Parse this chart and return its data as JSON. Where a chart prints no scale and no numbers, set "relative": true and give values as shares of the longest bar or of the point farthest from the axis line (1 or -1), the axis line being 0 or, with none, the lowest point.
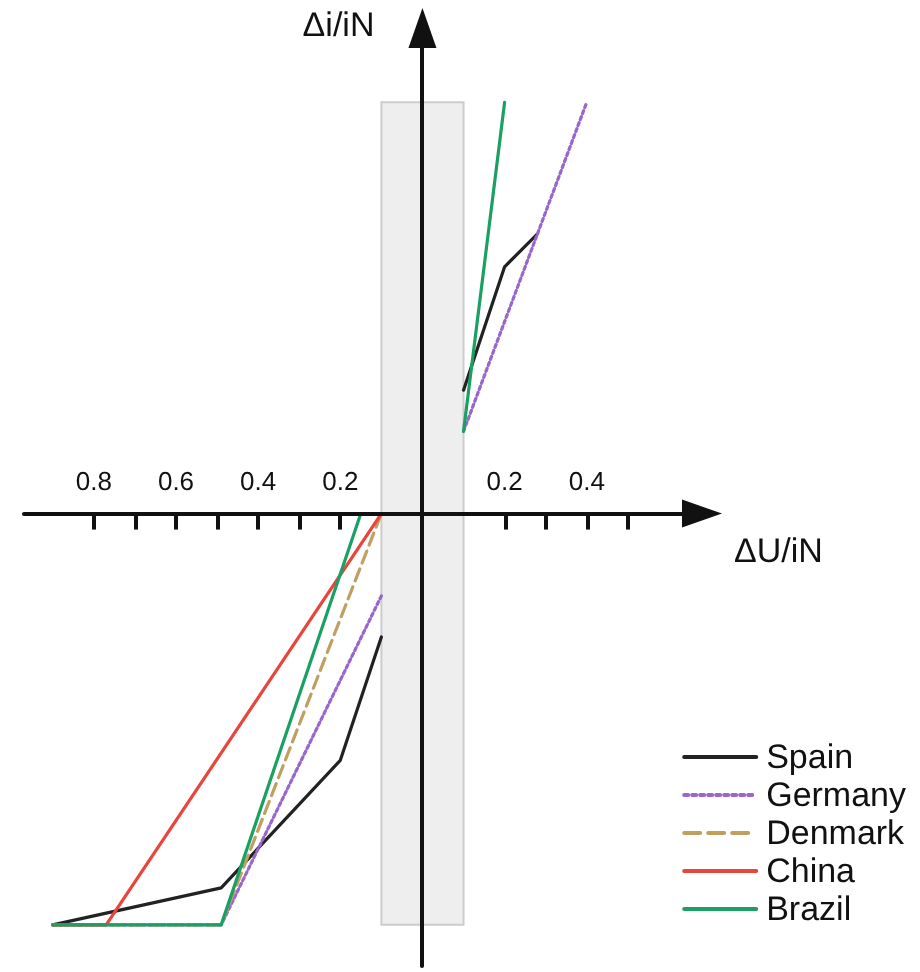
{
  "chart_data": {
    "type": "line",
    "xlabel": "ΔU/iN",
    "ylabel": "Δi/iN",
    "relative": true,
    "xlim": [
      -0.97,
      0.7
    ],
    "xticks": [
      {
        "value": -0.8,
        "label": "0.8"
      },
      {
        "value": -0.7,
        "label": null
      },
      {
        "value": -0.6,
        "label": "0.6"
      },
      {
        "value": -0.5,
        "label": null
      },
      {
        "value": -0.4,
        "label": "0.4"
      },
      {
        "value": -0.3,
        "label": null
      },
      {
        "value": -0.2,
        "label": "0.2"
      },
      {
        "value": 0.2,
        "label": "0.2"
      },
      {
        "value": 0.3,
        "label": null
      },
      {
        "value": 0.4,
        "label": "0.4"
      },
      {
        "value": 0.5,
        "label": null
      }
    ],
    "bands": [
      {
        "axis": "x",
        "from": -0.1,
        "to": 0.1,
        "label": null,
        "color": "#eeeeee"
      }
    ],
    "legend": "bottom right",
    "grid": false,
    "marker": "none",
    "series": [
      {
        "name": "Spain",
        "color": "#222222",
        "line_style": "solid",
        "x": [
          -0.9,
          -0.49,
          -0.2,
          -0.1,
          0,
          0.1,
          0.2,
          0.28
        ],
        "values": [
          -1,
          -0.91,
          -0.6,
          -0.3,
          null,
          0.3,
          0.6,
          0.68
        ]
      },
      {
        "name": "Germany",
        "color": "#9966cc",
        "line_style": "dotted",
        "x": [
          -0.9,
          -0.49,
          -0.1,
          0,
          0.1,
          0.4
        ],
        "values": [
          -1,
          -1,
          -0.2,
          null,
          0.2,
          1
        ]
      },
      {
        "name": "Denmark",
        "color": "#bfa060",
        "line_style": "dashed",
        "x": [
          -0.9,
          -0.49,
          -0.1
        ],
        "values": [
          -1,
          -1,
          0
        ]
      },
      {
        "name": "China",
        "color": "#e8453c",
        "line_style": "solid",
        "x": [
          -0.9,
          -0.77,
          -0.1
        ],
        "values": [
          -1,
          -1,
          0
        ]
      },
      {
        "name": "Brazil",
        "color": "#1aa063",
        "line_style": "solid",
        "x": [
          -0.9,
          -0.49,
          -0.15,
          0,
          0.1,
          0.2
        ],
        "values": [
          -1,
          -1,
          0,
          null,
          0.2,
          1
        ]
      }
    ]
  }
}
